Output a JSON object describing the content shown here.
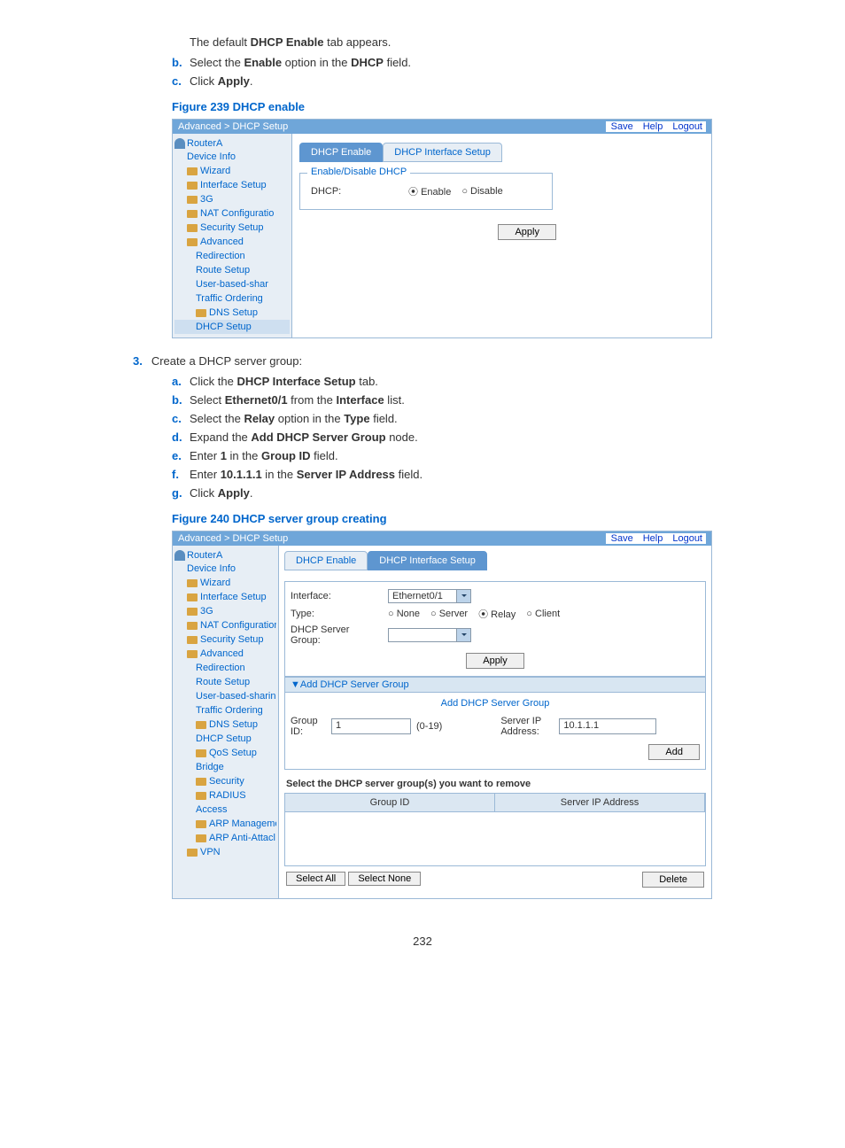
{
  "intro": {
    "prefix": "The default ",
    "bold": "DHCP Enable",
    "suffix": " tab appears."
  },
  "steps_top": [
    {
      "letter": "b.",
      "parts": [
        "Select the ",
        "Enable",
        " option in the ",
        "DHCP",
        " field."
      ]
    },
    {
      "letter": "c.",
      "parts": [
        "Click ",
        "Apply",
        "."
      ]
    }
  ],
  "fig1_caption": "Figure 239 DHCP enable",
  "fig1": {
    "breadcrumb": "Advanced > DHCP Setup",
    "links": [
      "Save",
      "Help",
      "Logout"
    ],
    "root": "RouterA",
    "tree": [
      {
        "label": "Device Info",
        "sub": false,
        "folder": false
      },
      {
        "label": "Wizard",
        "sub": false,
        "folder": true
      },
      {
        "label": "Interface Setup",
        "sub": false,
        "folder": true
      },
      {
        "label": "3G",
        "sub": false,
        "folder": true
      },
      {
        "label": "NAT Configuratio",
        "sub": false,
        "folder": true
      },
      {
        "label": "Security Setup",
        "sub": false,
        "folder": true
      },
      {
        "label": "Advanced",
        "sub": false,
        "folder": true
      },
      {
        "label": "Redirection",
        "sub": true,
        "folder": false
      },
      {
        "label": "Route Setup",
        "sub": true,
        "folder": false
      },
      {
        "label": "User-based-shar",
        "sub": true,
        "folder": false
      },
      {
        "label": "Traffic Ordering",
        "sub": true,
        "folder": false
      },
      {
        "label": "DNS Setup",
        "sub": true,
        "folder": true
      },
      {
        "label": "DHCP Setup",
        "sub": true,
        "folder": false,
        "active": true
      }
    ],
    "tab1": "DHCP Enable",
    "tab2": "DHCP Interface Setup",
    "legend": "Enable/Disable DHCP",
    "dhcp_label": "DHCP:",
    "enable": "Enable",
    "disable": "Disable",
    "apply": "Apply"
  },
  "step3": {
    "num": "3.",
    "text": "Create a DHCP server group:"
  },
  "steps_mid": [
    {
      "letter": "a.",
      "parts": [
        "Click the ",
        "DHCP Interface Setup",
        " tab."
      ]
    },
    {
      "letter": "b.",
      "parts": [
        "Select ",
        "Ethernet0/1",
        " from the ",
        "Interface",
        " list."
      ]
    },
    {
      "letter": "c.",
      "parts": [
        "Select the ",
        "Relay",
        " option in the ",
        "Type",
        " field."
      ]
    },
    {
      "letter": "d.",
      "parts": [
        "Expand the ",
        "Add DHCP Server Group",
        " node."
      ]
    },
    {
      "letter": "e.",
      "parts": [
        "Enter ",
        "1",
        " in the ",
        "Group ID",
        " field."
      ]
    },
    {
      "letter": "f.",
      "parts": [
        "Enter ",
        "10.1.1.1",
        " in the ",
        "Server IP Address",
        " field."
      ]
    },
    {
      "letter": "g.",
      "parts": [
        "Click ",
        "Apply",
        "."
      ]
    }
  ],
  "fig2_caption": "Figure 240 DHCP server group creating",
  "fig2": {
    "breadcrumb": "Advanced > DHCP Setup",
    "links": [
      "Save",
      "Help",
      "Logout"
    ],
    "root": "RouterA",
    "tree": [
      {
        "label": "Device Info",
        "sub": false,
        "folder": false
      },
      {
        "label": "Wizard",
        "sub": false,
        "folder": true
      },
      {
        "label": "Interface Setup",
        "sub": false,
        "folder": true
      },
      {
        "label": "3G",
        "sub": false,
        "folder": true
      },
      {
        "label": "NAT Configuration",
        "sub": false,
        "folder": true
      },
      {
        "label": "Security Setup",
        "sub": false,
        "folder": true
      },
      {
        "label": "Advanced",
        "sub": false,
        "folder": true
      },
      {
        "label": "Redirection",
        "sub": true,
        "folder": false
      },
      {
        "label": "Route Setup",
        "sub": true,
        "folder": false
      },
      {
        "label": "User-based-sharing",
        "sub": true,
        "folder": false
      },
      {
        "label": "Traffic Ordering",
        "sub": true,
        "folder": false
      },
      {
        "label": "DNS Setup",
        "sub": true,
        "folder": true
      },
      {
        "label": "DHCP Setup",
        "sub": true,
        "folder": false
      },
      {
        "label": "QoS Setup",
        "sub": true,
        "folder": true
      },
      {
        "label": "Bridge",
        "sub": true,
        "folder": false
      },
      {
        "label": "Security",
        "sub": true,
        "folder": true
      },
      {
        "label": "RADIUS",
        "sub": true,
        "folder": true
      },
      {
        "label": "Access",
        "sub": true,
        "folder": false
      },
      {
        "label": "ARP Manageme",
        "sub": true,
        "folder": true
      },
      {
        "label": "ARP Anti-Attacl",
        "sub": true,
        "folder": true
      },
      {
        "label": "VPN",
        "sub": false,
        "folder": true
      }
    ],
    "tab1": "DHCP Enable",
    "tab2": "DHCP Interface Setup",
    "interface_label": "Interface:",
    "interface_val": "Ethernet0/1",
    "type_label": "Type:",
    "type_opts": [
      "None",
      "Server",
      "Relay",
      "Client"
    ],
    "group_label": "DHCP Server Group:",
    "apply": "Apply",
    "add_hdr": "▼Add DHCP Server Group",
    "add_title": "Add DHCP Server Group",
    "gid_label": "Group ID:",
    "gid_val": "1",
    "gid_range": "(0-19)",
    "sip_label": "Server IP Address:",
    "sip_val": "10.1.1.1",
    "add_btn": "Add",
    "remove_text": "Select the DHCP server group(s) you want to remove",
    "col1": "Group ID",
    "col2": "Server IP Address",
    "select_all": "Select All",
    "select_none": "Select None",
    "delete": "Delete"
  },
  "page_num": "232"
}
